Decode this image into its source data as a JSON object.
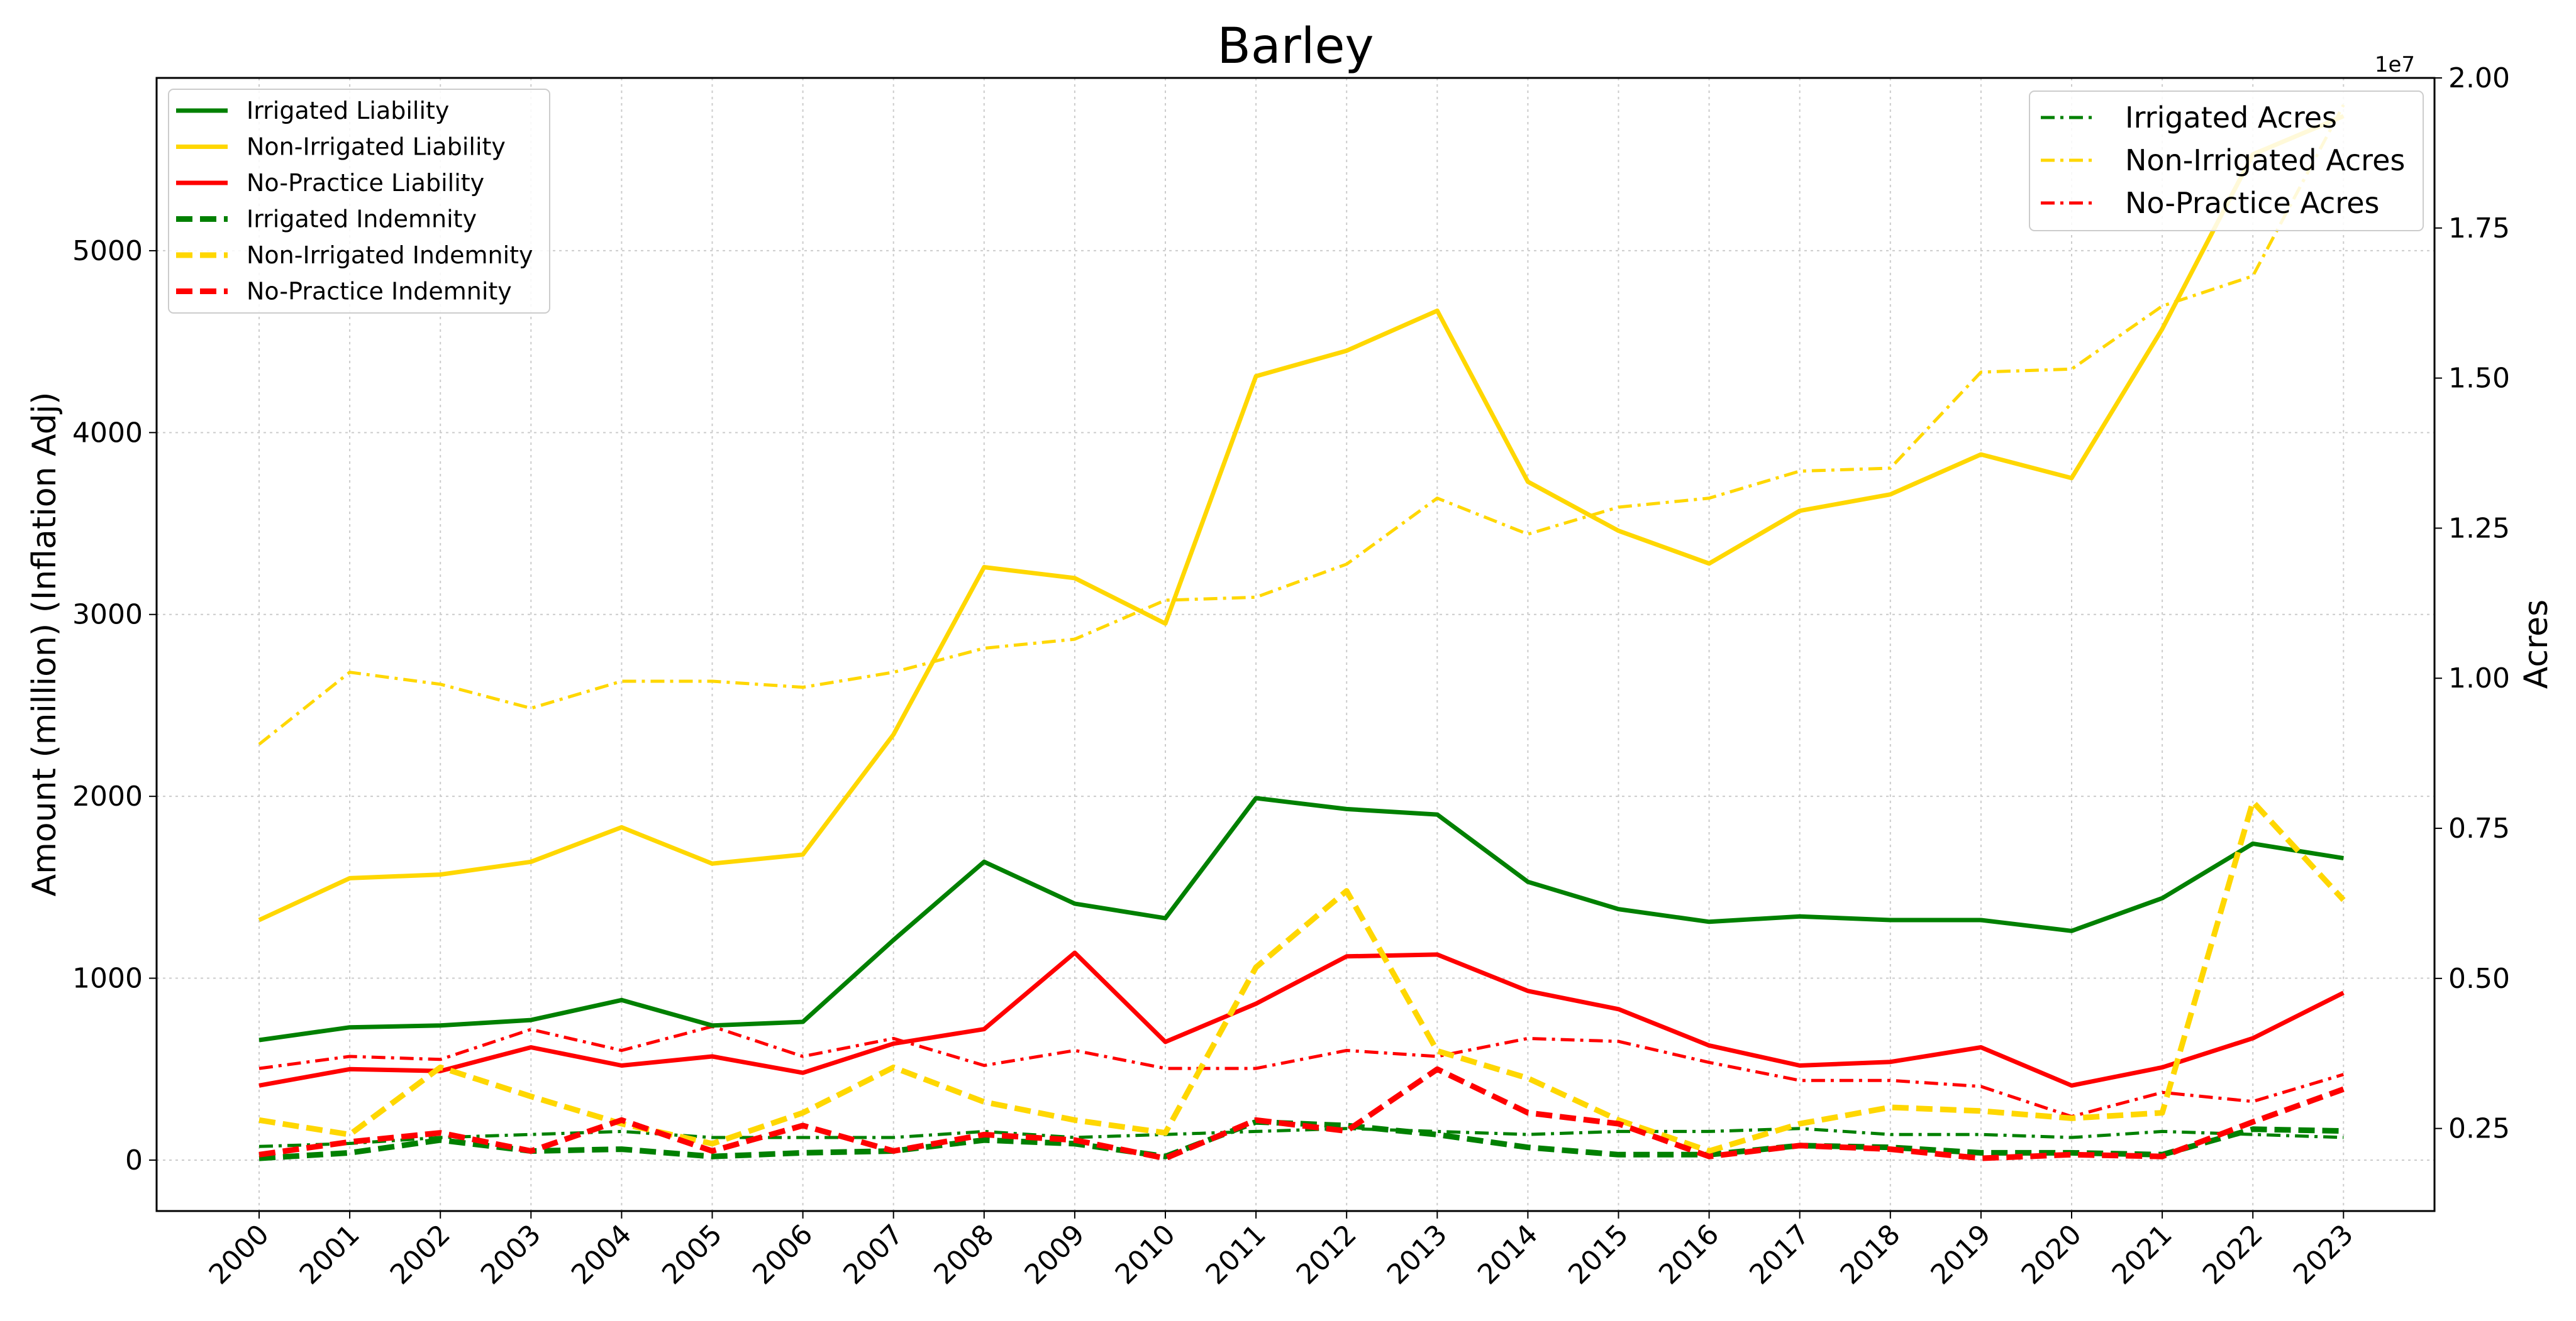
{
  "chart_data": {
    "type": "line",
    "title": "Barley",
    "ylabel": "Amount (million) (Inflation Adj)",
    "ylabel_right": "Acres",
    "right_axis_multiplier": "1e7",
    "categories": [
      "2000",
      "2001",
      "2002",
      "2003",
      "2004",
      "2005",
      "2006",
      "2007",
      "2008",
      "2009",
      "2010",
      "2011",
      "2012",
      "2013",
      "2014",
      "2015",
      "2016",
      "2017",
      "2018",
      "2019",
      "2020",
      "2021",
      "2022",
      "2023"
    ],
    "ylim": [
      -280,
      5950
    ],
    "ylim_right": [
      0.1125,
      2.0
    ],
    "yticks": [
      0,
      1000,
      2000,
      3000,
      4000,
      5000
    ],
    "yticks_right": [
      "0.25",
      "0.50",
      "0.75",
      "1.00",
      "1.25",
      "1.50",
      "1.75",
      "2.00"
    ],
    "grid": true,
    "left_legend_position": "upper-left",
    "right_legend_position": "upper-right",
    "series_left": [
      {
        "name": "Irrigated Liability",
        "color": "#008000",
        "style": "solid",
        "values": [
          660,
          730,
          740,
          770,
          880,
          740,
          760,
          1210,
          1640,
          1410,
          1330,
          1990,
          1930,
          1900,
          1530,
          1380,
          1310,
          1340,
          1320,
          1320,
          1260,
          1440,
          1740,
          1660
        ]
      },
      {
        "name": "Non-Irrigated Liability",
        "color": "#FFD700",
        "style": "solid",
        "values": [
          1320,
          1550,
          1570,
          1640,
          1830,
          1630,
          1680,
          2340,
          3260,
          3200,
          2950,
          4310,
          4450,
          4670,
          3730,
          3460,
          3280,
          3570,
          3660,
          3880,
          3750,
          4570,
          5530,
          5740
        ]
      },
      {
        "name": "No-Practice Liability",
        "color": "#FF0000",
        "style": "solid",
        "values": [
          410,
          500,
          490,
          620,
          520,
          570,
          480,
          640,
          720,
          1140,
          650,
          860,
          1120,
          1130,
          930,
          830,
          630,
          520,
          540,
          620,
          410,
          510,
          670,
          920
        ]
      },
      {
        "name": "Irrigated Indemnity",
        "color": "#008000",
        "style": "dashed",
        "values": [
          10,
          40,
          110,
          50,
          60,
          20,
          40,
          50,
          110,
          90,
          20,
          210,
          190,
          140,
          70,
          30,
          30,
          80,
          70,
          40,
          40,
          30,
          170,
          160
        ]
      },
      {
        "name": "Non-Irrigated Indemnity",
        "color": "#FFD700",
        "style": "dashed",
        "values": [
          220,
          140,
          510,
          350,
          200,
          90,
          260,
          510,
          320,
          220,
          150,
          1060,
          1480,
          600,
          450,
          220,
          50,
          200,
          290,
          270,
          230,
          260,
          1970,
          1430
        ]
      },
      {
        "name": "No-Practice Indemnity",
        "color": "#FF0000",
        "style": "dashed",
        "values": [
          30,
          100,
          150,
          50,
          220,
          50,
          190,
          50,
          140,
          110,
          10,
          220,
          160,
          500,
          260,
          200,
          20,
          80,
          60,
          10,
          30,
          20,
          210,
          390
        ]
      }
    ],
    "series_right": [
      {
        "name": "Irrigated Acres",
        "color": "#008000",
        "style": "dashdot",
        "values": [
          0.22,
          0.225,
          0.235,
          0.24,
          0.245,
          0.235,
          0.235,
          0.235,
          0.245,
          0.235,
          0.24,
          0.245,
          0.25,
          0.245,
          0.24,
          0.245,
          0.245,
          0.25,
          0.24,
          0.24,
          0.235,
          0.245,
          0.24,
          0.235
        ]
      },
      {
        "name": "Non-Irrigated Acres",
        "color": "#FFD700",
        "style": "dashdot",
        "values": [
          0.89,
          1.01,
          0.99,
          0.95,
          0.995,
          0.995,
          0.985,
          1.01,
          1.05,
          1.065,
          1.13,
          1.135,
          1.19,
          1.3,
          1.24,
          1.285,
          1.3,
          1.345,
          1.35,
          1.51,
          1.515,
          1.62,
          1.67,
          1.955
        ]
      },
      {
        "name": "No-Practice Acres",
        "color": "#FF0000",
        "style": "dashdot",
        "values": [
          0.35,
          0.37,
          0.365,
          0.415,
          0.38,
          0.42,
          0.37,
          0.4,
          0.355,
          0.38,
          0.35,
          0.35,
          0.38,
          0.37,
          0.4,
          0.395,
          0.36,
          0.33,
          0.33,
          0.32,
          0.27,
          0.31,
          0.295,
          0.34
        ]
      }
    ]
  }
}
